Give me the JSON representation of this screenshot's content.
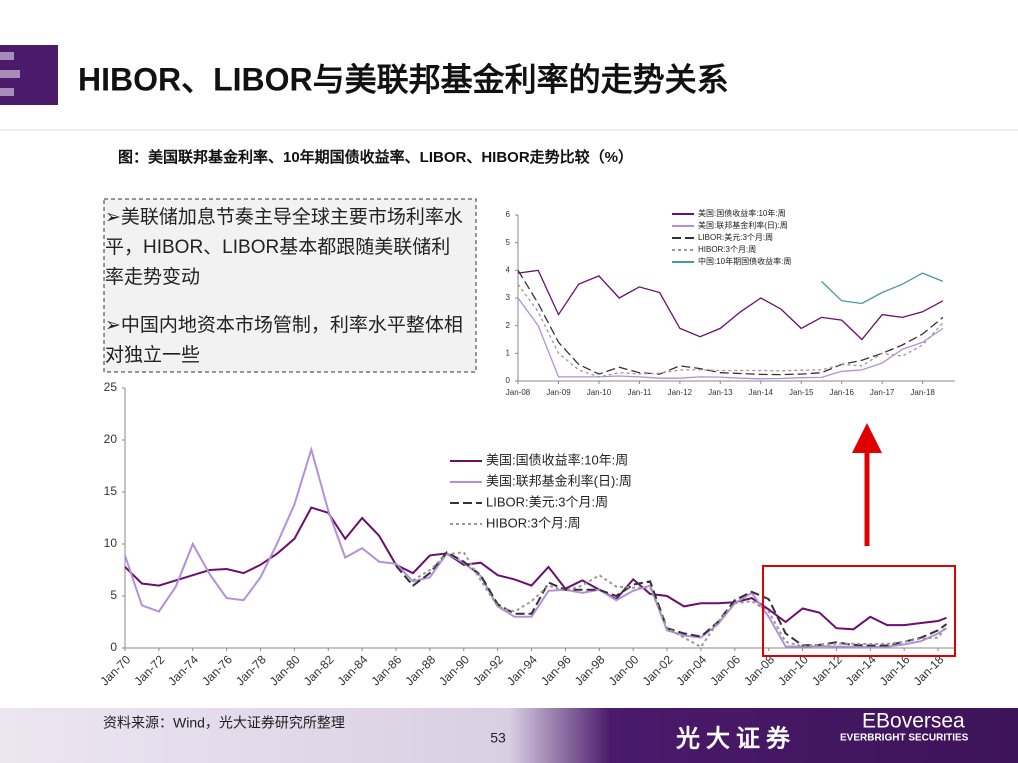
{
  "header": {
    "title": "HIBOR、LIBOR与美联邦基金利率的走势关系"
  },
  "chart_caption": "图：美国联邦基金利率、10年期国债收益率、LIBOR、HIBOR走势比较（%）",
  "bullets": [
    "➢美联储加息节奏主导全球主要市场利率水平，HIBOR、LIBOR基本都跟随美联储利率走势变动",
    "➢中国内地资本市场管制，利率水平整体相对独立一些"
  ],
  "chart_data": [
    {
      "type": "line",
      "legend": "upper-center",
      "x": [
        2008,
        2008.5,
        2009,
        2009.5,
        2010,
        2010.5,
        2011,
        2011.5,
        2012,
        2012.5,
        2013,
        2013.5,
        2014,
        2014.5,
        2015,
        2015.5,
        2016,
        2016.5,
        2017,
        2017.5,
        2018,
        2018.5
      ],
      "xlim": [
        2008,
        2018.8
      ],
      "ylim": [
        0,
        6
      ],
      "yticks": [
        0,
        1,
        2,
        3,
        4,
        5,
        6
      ],
      "xticks": [
        {
          "value": 2008,
          "label": "Jan-08"
        },
        {
          "value": 2009,
          "label": "Jan-09"
        },
        {
          "value": 2010,
          "label": "Jan-10"
        },
        {
          "value": 2011,
          "label": "Jan-11"
        },
        {
          "value": 2012,
          "label": "Jan-12"
        },
        {
          "value": 2013,
          "label": "Jan-13"
        },
        {
          "value": 2014,
          "label": "Jan-14"
        },
        {
          "value": 2015,
          "label": "Jan-15"
        },
        {
          "value": 2016,
          "label": "Jan-16"
        },
        {
          "value": 2017,
          "label": "Jan-17"
        },
        {
          "value": 2018,
          "label": "Jan-18"
        }
      ],
      "series": [
        {
          "name": "美国:国债收益率:10年:周",
          "color": "#6a0f6e",
          "dash": "solid",
          "values": [
            3.9,
            4.0,
            2.4,
            3.5,
            3.8,
            3.0,
            3.4,
            3.2,
            1.9,
            1.6,
            1.9,
            2.5,
            3.0,
            2.6,
            1.9,
            2.3,
            2.2,
            1.5,
            2.4,
            2.3,
            2.5,
            2.9
          ]
        },
        {
          "name": "美国:联邦基金利率(日):周",
          "color": "#b48fdc",
          "dash": "solid",
          "values": [
            3.0,
            2.0,
            0.15,
            0.15,
            0.15,
            0.18,
            0.15,
            0.1,
            0.1,
            0.15,
            0.14,
            0.1,
            0.08,
            0.09,
            0.12,
            0.13,
            0.35,
            0.4,
            0.65,
            1.15,
            1.4,
            1.9
          ]
        },
        {
          "name": "LIBOR:美元:3个月:周",
          "color": "#333333",
          "dash": "long",
          "values": [
            4.0,
            2.8,
            1.4,
            0.6,
            0.25,
            0.5,
            0.3,
            0.25,
            0.55,
            0.45,
            0.3,
            0.27,
            0.24,
            0.23,
            0.25,
            0.3,
            0.6,
            0.75,
            1.0,
            1.3,
            1.7,
            2.3
          ]
        },
        {
          "name": "HIBOR:3个月:周",
          "color": "#999999",
          "dash": "short",
          "values": [
            3.5,
            2.5,
            1.0,
            0.4,
            0.15,
            0.3,
            0.26,
            0.28,
            0.4,
            0.4,
            0.38,
            0.38,
            0.38,
            0.37,
            0.39,
            0.4,
            0.6,
            0.55,
            1.0,
            0.9,
            1.3,
            2.1
          ]
        },
        {
          "name": "中国:10年期国债收益率:周",
          "color": "#4a9a9a",
          "dash": "solid",
          "values": [
            null,
            null,
            null,
            null,
            null,
            null,
            null,
            null,
            null,
            null,
            null,
            null,
            null,
            null,
            null,
            3.6,
            2.9,
            2.8,
            3.2,
            3.5,
            3.9,
            3.6
          ]
        }
      ]
    },
    {
      "type": "line",
      "legend": "center",
      "x": [
        1970,
        1971,
        1972,
        1973,
        1974,
        1975,
        1976,
        1977,
        1978,
        1979,
        1980,
        1981,
        1982,
        1983,
        1984,
        1985,
        1986,
        1987,
        1988,
        1989,
        1990,
        1991,
        1992,
        1993,
        1994,
        1995,
        1996,
        1997,
        1998,
        1999,
        2000,
        2001,
        2002,
        2003,
        2004,
        2005,
        2006,
        2007,
        2008,
        2009,
        2010,
        2011,
        2012,
        2013,
        2014,
        2015,
        2016,
        2017,
        2018,
        2018.5
      ],
      "xlim": [
        1970,
        2019
      ],
      "ylim": [
        0,
        25
      ],
      "yticks": [
        0,
        5,
        10,
        15,
        20,
        25
      ],
      "xticks": [
        {
          "value": 1970,
          "label": "Jan-70"
        },
        {
          "value": 1972,
          "label": "Jan-72"
        },
        {
          "value": 1974,
          "label": "Jan-74"
        },
        {
          "value": 1976,
          "label": "Jan-76"
        },
        {
          "value": 1978,
          "label": "Jan-78"
        },
        {
          "value": 1980,
          "label": "Jan-80"
        },
        {
          "value": 1982,
          "label": "Jan-82"
        },
        {
          "value": 1984,
          "label": "Jan-84"
        },
        {
          "value": 1986,
          "label": "Jan-86"
        },
        {
          "value": 1988,
          "label": "Jan-88"
        },
        {
          "value": 1990,
          "label": "Jan-90"
        },
        {
          "value": 1992,
          "label": "Jan-92"
        },
        {
          "value": 1994,
          "label": "Jan-94"
        },
        {
          "value": 1996,
          "label": "Jan-96"
        },
        {
          "value": 1998,
          "label": "Jan-98"
        },
        {
          "value": 2000,
          "label": "Jan-00"
        },
        {
          "value": 2002,
          "label": "Jan-02"
        },
        {
          "value": 2004,
          "label": "Jan-04"
        },
        {
          "value": 2006,
          "label": "Jan-06"
        },
        {
          "value": 2008,
          "label": "Jan-08"
        },
        {
          "value": 2010,
          "label": "Jan-10"
        },
        {
          "value": 2012,
          "label": "Jan-12"
        },
        {
          "value": 2014,
          "label": "Jan-14"
        },
        {
          "value": 2016,
          "label": "Jan-16"
        },
        {
          "value": 2018,
          "label": "Jan-18"
        }
      ],
      "series": [
        {
          "name": "美国:国债收益率:10年:周",
          "color": "#6a0f6e",
          "dash": "solid",
          "values": [
            7.8,
            6.2,
            6.0,
            6.5,
            7.0,
            7.5,
            7.6,
            7.2,
            8.0,
            9.1,
            10.5,
            13.5,
            13.0,
            10.5,
            12.5,
            10.8,
            8.0,
            7.2,
            8.9,
            9.1,
            8.0,
            8.2,
            7.0,
            6.6,
            6.0,
            7.8,
            5.7,
            6.5,
            5.6,
            4.7,
            6.6,
            5.2,
            5.0,
            4.0,
            4.3,
            4.3,
            4.4,
            4.8,
            3.7,
            2.5,
            3.8,
            3.4,
            1.9,
            1.8,
            3.0,
            2.2,
            2.2,
            2.4,
            2.6,
            2.9
          ]
        },
        {
          "name": "美国:联邦基金利率(日):周",
          "color": "#b48fdc",
          "dash": "solid",
          "values": [
            8.9,
            4.1,
            3.5,
            5.9,
            10.0,
            7.1,
            4.8,
            4.6,
            6.8,
            10.1,
            13.8,
            19.1,
            13.2,
            8.7,
            9.6,
            8.3,
            8.1,
            6.4,
            6.8,
            9.1,
            8.2,
            6.9,
            4.0,
            3.0,
            3.0,
            5.5,
            5.6,
            5.3,
            5.6,
            4.6,
            5.5,
            6.0,
            1.7,
            1.2,
            1.0,
            2.3,
            4.3,
            5.3,
            3.0,
            0.15,
            0.12,
            0.18,
            0.14,
            0.12,
            0.08,
            0.12,
            0.35,
            0.65,
            1.4,
            1.9
          ]
        },
        {
          "name": "LIBOR:美元:3个月:周",
          "color": "#333333",
          "dash": "long",
          "values": [
            null,
            null,
            null,
            null,
            null,
            null,
            null,
            null,
            null,
            null,
            null,
            null,
            null,
            null,
            null,
            null,
            7.9,
            6.0,
            7.2,
            9.2,
            8.3,
            7.0,
            4.2,
            3.3,
            3.3,
            6.3,
            5.6,
            5.6,
            5.6,
            5.0,
            6.1,
            6.4,
            1.9,
            1.4,
            1.1,
            2.5,
            4.6,
            5.4,
            4.7,
            1.4,
            0.25,
            0.3,
            0.55,
            0.3,
            0.24,
            0.25,
            0.6,
            1.0,
            1.7,
            2.3
          ]
        },
        {
          "name": "HIBOR:3个月:周",
          "color": "#999999",
          "dash": "short",
          "values": [
            null,
            null,
            null,
            null,
            null,
            null,
            null,
            null,
            null,
            null,
            null,
            null,
            null,
            null,
            null,
            null,
            null,
            6.5,
            7.5,
            9.0,
            9.2,
            6.5,
            4.0,
            3.5,
            4.5,
            6.0,
            5.5,
            6.0,
            7.0,
            5.9,
            5.8,
            5.8,
            1.9,
            1.0,
            0.1,
            2.5,
            4.3,
            4.5,
            3.5,
            0.6,
            0.15,
            0.3,
            0.4,
            0.4,
            0.38,
            0.4,
            0.6,
            0.9,
            1.0,
            2.1
          ]
        }
      ]
    }
  ],
  "footer": {
    "source": "资料来源：Wind，光大证券研究所整理",
    "page": "53",
    "brand": "光大证券",
    "logo_text": "EBoversea",
    "logo_sub": "EVERBRIGHT SECURITIES"
  }
}
